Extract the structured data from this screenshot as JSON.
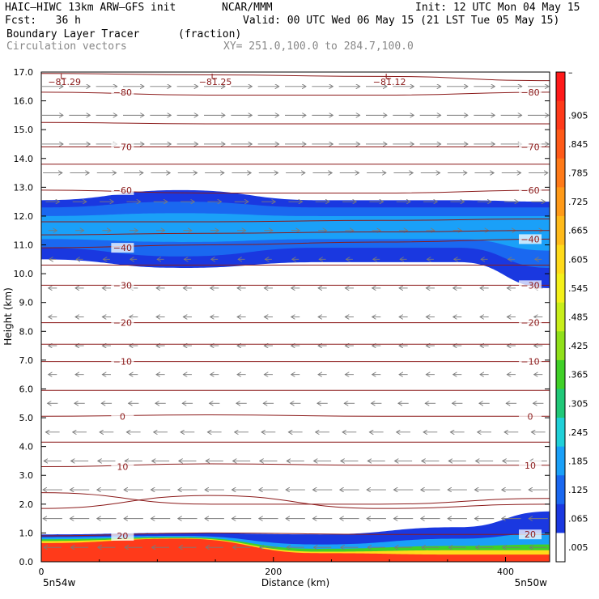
{
  "header": {
    "model": "HAIC–HIWC 13km ARW–GFS init",
    "org": "NCAR/MMM",
    "init": "Init: 12 UTC Mon 04 May 15",
    "fcst": "Fcst:   36 h",
    "valid": "Valid: 00 UTC Wed 06 May 15 (21 LST Tue 05 May 15)",
    "field": "Boundary Layer Tracer",
    "units": "(fraction)",
    "vectors": "Circulation vectors",
    "xy": "XY= 251.0,100.0 to 284.7,100.0"
  },
  "colors": {
    "contour": "#8b1a1a",
    "vector": "#7a7a7a",
    "bg": "#ffffff"
  },
  "chart_data": {
    "type": "cross-section",
    "xlabel": "Distance (km)",
    "ylabel": "Height (km)",
    "xlim": [
      0,
      438
    ],
    "ylim": [
      0,
      17
    ],
    "x_ticks": [
      0,
      200,
      400
    ],
    "x_tick_labels": [
      "0",
      "200",
      "400"
    ],
    "y_ticks": [
      0,
      1,
      2,
      3,
      4,
      5,
      6,
      7,
      8,
      9,
      10,
      11,
      12,
      13,
      14,
      15,
      16,
      17
    ],
    "y_tick_labels": [
      "0.0",
      "1.0",
      "2.0",
      "3.0",
      "4.0",
      "5.0",
      "6.0",
      "7.0",
      "8.0",
      "9.0",
      "10.0",
      "11.0",
      "12.0",
      "13.0",
      "14.0",
      "15.0",
      "16.0",
      "17.0"
    ],
    "endpoints": {
      "left": "5n54w",
      "right": "5n50w"
    },
    "colorbar": {
      "labels": [
        "–",
        ".905",
        ".845",
        ".785",
        ".725",
        ".665",
        ".605",
        ".545",
        ".485",
        ".425",
        ".365",
        ".305",
        ".245",
        ".185",
        ".125",
        ".065",
        ".005"
      ],
      "colors": [
        "#ff1a1a",
        "#ff3a1a",
        "#ff5a18",
        "#ff7a18",
        "#ff9a18",
        "#ffba1a",
        "#ffda1a",
        "#f4f01a",
        "#c8ee1a",
        "#90e01a",
        "#40d028",
        "#20c878",
        "#20d0d8",
        "#1aa0f8",
        "#1a68f0",
        "#1a38e0",
        "#ffffff"
      ]
    },
    "temperature_contours": [
      {
        "label": "−80",
        "y": [
          16.3,
          16.2,
          16.2,
          16.3
        ]
      },
      {
        "label": "−70",
        "y": [
          14.4,
          14.4,
          14.4,
          14.4
        ]
      },
      {
        "label": "−60",
        "y": [
          12.9,
          12.8,
          12.8,
          12.9
        ]
      },
      {
        "label": "−40",
        "y": [
          10.9,
          11.0,
          11.1,
          11.2
        ]
      },
      {
        "label": "−30",
        "y": [
          9.6,
          9.6,
          9.6,
          9.6
        ]
      },
      {
        "label": "−20",
        "y": [
          8.3,
          8.3,
          8.3,
          8.3
        ]
      },
      {
        "label": "−10",
        "y": [
          6.95,
          6.95,
          6.95,
          6.95
        ]
      },
      {
        "label": "0",
        "y": [
          5.05,
          5.1,
          5.05,
          5.05
        ]
      },
      {
        "label": "10",
        "y": [
          3.3,
          3.4,
          3.35,
          3.35
        ]
      },
      {
        "label": "20",
        "y": [
          0.9,
          1.0,
          0.95,
          0.95
        ]
      }
    ],
    "plain_contours": [
      {
        "y": [
          16.95,
          16.9,
          16.85,
          16.7
        ]
      },
      {
        "y": [
          15.25,
          15.2,
          15.2,
          15.2
        ]
      },
      {
        "y": [
          13.8,
          13.8,
          13.8,
          13.8
        ]
      },
      {
        "y": [
          11.8,
          11.8,
          11.85,
          11.9
        ]
      },
      {
        "y": [
          11.35,
          11.4,
          11.45,
          11.5
        ]
      },
      {
        "y": [
          10.3,
          10.3,
          10.3,
          10.3
        ]
      },
      {
        "y": [
          7.55,
          7.55,
          7.55,
          7.55
        ]
      },
      {
        "y": [
          5.95,
          5.95,
          5.95,
          5.95
        ]
      },
      {
        "y": [
          4.15,
          4.15,
          4.15,
          4.15
        ]
      },
      {
        "y": [
          2.4,
          2.0,
          2.0,
          2.2
        ]
      },
      {
        "y": [
          1.85,
          2.3,
          1.85,
          2.0
        ]
      }
    ],
    "contour_x": [
      0,
      146,
      292,
      438
    ],
    "tropopause_labels": [
      {
        "text": "−81.29",
        "x": 20
      },
      {
        "text": "−81.25",
        "x": 150
      },
      {
        "text": "−81.12",
        "x": 300
      }
    ],
    "tracer_regions": [
      {
        "value": 0.065,
        "shape": "upper",
        "bottom": [
          10.5,
          10.2,
          10.4,
          10.4,
          9.5
        ],
        "top": [
          12.55,
          12.9,
          12.55,
          12.55,
          12.5
        ]
      },
      {
        "value": 0.125,
        "shape": "upper",
        "bottom": [
          10.9,
          10.6,
          10.9,
          10.9,
          10.2
        ],
        "top": [
          12.3,
          12.5,
          12.3,
          12.3,
          12.3
        ]
      },
      {
        "value": 0.185,
        "shape": "upper",
        "bottom": [
          11.2,
          11.1,
          11.2,
          11.2,
          10.8
        ],
        "top": [
          12.0,
          12.1,
          12.0,
          12.0,
          12.0
        ]
      },
      {
        "value": 0.065,
        "shape": "lower",
        "top": [
          0.95,
          1.0,
          0.95,
          1.2,
          1.75
        ]
      },
      {
        "value": 0.185,
        "shape": "lower",
        "top": [
          0.85,
          0.9,
          0.6,
          0.8,
          1.0
        ]
      },
      {
        "value": 0.365,
        "shape": "lower",
        "top": [
          0.78,
          0.85,
          0.45,
          0.55,
          0.6
        ]
      },
      {
        "value": 0.605,
        "shape": "lower",
        "top": [
          0.72,
          0.82,
          0.35,
          0.4,
          0.4
        ]
      },
      {
        "value": 0.905,
        "shape": "lower",
        "top": [
          0.65,
          0.8,
          0.3,
          0.25,
          0.25
        ]
      }
    ],
    "region_x": [
      0,
      120,
      240,
      360,
      438
    ],
    "wind_profile": [
      {
        "z": 16.5,
        "u": 1
      },
      {
        "z": 15.5,
        "u": 1
      },
      {
        "z": 14.5,
        "u": 1
      },
      {
        "z": 13.5,
        "u": 0.9
      },
      {
        "z": 12.5,
        "u": 0.6
      },
      {
        "z": 11.5,
        "u": 0.3
      },
      {
        "z": 10.5,
        "u": -0.2
      },
      {
        "z": 9.5,
        "u": -0.3
      },
      {
        "z": 8.5,
        "u": -0.3
      },
      {
        "z": 7.5,
        "u": -0.3
      },
      {
        "z": 6.5,
        "u": -0.3
      },
      {
        "z": 5.5,
        "u": -0.4
      },
      {
        "z": 4.5,
        "u": -0.6
      },
      {
        "z": 3.5,
        "u": -0.8
      },
      {
        "z": 2.5,
        "u": -0.9
      },
      {
        "z": 1.5,
        "u": -0.9
      },
      {
        "z": 0.5,
        "u": -0.8
      }
    ]
  }
}
